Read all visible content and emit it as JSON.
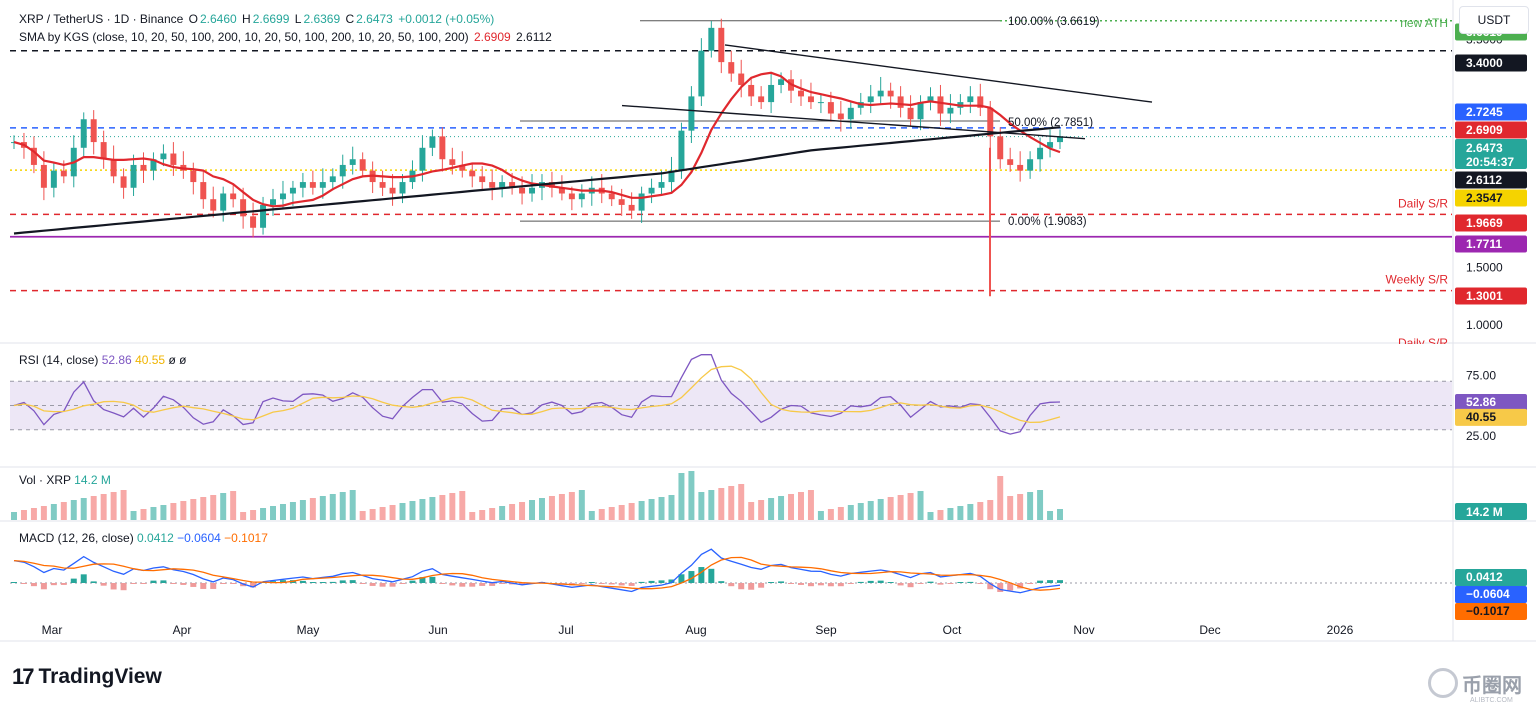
{
  "header": {
    "symbol": "XRP / TetherUS · 1D · Binance",
    "open_label": "O",
    "open": "2.6460",
    "high_label": "H",
    "high": "2.6699",
    "low_label": "L",
    "low": "2.6369",
    "close_label": "C",
    "close": "2.6473",
    "change": "+0.0012 (+0.05%)",
    "sma_label": "SMA by KGS (close, 10, 20, 50, 100, 200, 10, 20, 50, 100, 200, 10, 20, 50, 100, 200)",
    "sma_val1": "2.6909",
    "sma_val2": "2.6112"
  },
  "currency_button": "USDT",
  "colors": {
    "up": "#26a69a",
    "down": "#ef5350",
    "sma50": "#e0282e",
    "sma200": "#131722",
    "rsi": "#7e57c2",
    "rsi_ma": "#f7c948",
    "macd": "#2962ff",
    "signal": "#ff6d00",
    "purple_line": "#9c27b0",
    "blue_dash": "#2962ff",
    "yellow_dot": "#f5d300",
    "ath_green": "#4caf50"
  },
  "price_axis": {
    "ticks": [
      "3.5000",
      "1.5000",
      "1.0000"
    ],
    "labels": [
      {
        "text": "3.6619",
        "bg": "#4caf50",
        "color": "#ffffff"
      },
      {
        "text": "3.4000",
        "bg": "#131722",
        "color": "#ffffff"
      },
      {
        "text": "2.7245",
        "bg": "#2962ff",
        "color": "#ffffff"
      },
      {
        "text": "2.6909",
        "bg": "#e0282e",
        "color": "#ffffff"
      },
      {
        "text": "2.6473",
        "bg": "#26a69a",
        "color": "#ffffff",
        "sub": "20:54:37"
      },
      {
        "text": "2.6112",
        "bg": "#131722",
        "color": "#ffffff"
      },
      {
        "text": "2.3547",
        "bg": "#f5d300",
        "color": "#131722"
      },
      {
        "text": "1.9669",
        "bg": "#e0282e",
        "color": "#ffffff"
      },
      {
        "text": "1.7711",
        "bg": "#9c27b0",
        "color": "#ffffff"
      },
      {
        "text": "1.3001",
        "bg": "#e0282e",
        "color": "#ffffff"
      }
    ]
  },
  "annotations": {
    "new_ath": "new ATH",
    "fib_100": "100.00% (3.6619)",
    "fib_50": "50.00% (2.7851)",
    "fib_0": "0.00% (1.9083)",
    "daily_sr": "Daily S/R",
    "weekly_sr": "Weekly S/R",
    "daily_sr_cut": "Daily S/R"
  },
  "rsi": {
    "label": "RSI (14, close)",
    "value": "52.86",
    "ma_value": "40.55",
    "extra": "ø ø",
    "axis_upper": "75.00",
    "axis_lower": "25.00"
  },
  "volume": {
    "label": "Vol · XRP",
    "value": "14.2 M",
    "axis_value": "14.2 M"
  },
  "macd": {
    "label": "MACD (12, 26, close)",
    "hist": "0.0412",
    "macd": "−0.0604",
    "signal": "−0.1017",
    "axis_hist": "0.0412",
    "axis_macd": "−0.0604",
    "axis_signal": "−0.1017"
  },
  "time_axis": [
    "Mar",
    "Apr",
    "May",
    "Jun",
    "Jul",
    "Aug",
    "Sep",
    "Oct",
    "Nov",
    "Dec",
    "2026"
  ],
  "chart_data": {
    "type": "candlestick",
    "symbol": "XRP / TetherUS",
    "interval": "1D",
    "exchange": "Binance",
    "last": {
      "open": 2.646,
      "high": 2.6699,
      "low": 2.6369,
      "close": 2.6473
    },
    "close_series_approx": [
      2.6,
      2.55,
      2.4,
      2.2,
      2.35,
      2.3,
      2.55,
      2.8,
      2.6,
      2.45,
      2.3,
      2.2,
      2.4,
      2.35,
      2.45,
      2.5,
      2.4,
      2.35,
      2.25,
      2.1,
      2.0,
      2.15,
      2.1,
      1.95,
      1.85,
      2.05,
      2.1,
      2.15,
      2.2,
      2.25,
      2.2,
      2.25,
      2.3,
      2.4,
      2.45,
      2.35,
      2.25,
      2.2,
      2.15,
      2.25,
      2.35,
      2.55,
      2.65,
      2.45,
      2.4,
      2.35,
      2.3,
      2.25,
      2.2,
      2.25,
      2.2,
      2.15,
      2.2,
      2.25,
      2.2,
      2.15,
      2.1,
      2.15,
      2.2,
      2.15,
      2.1,
      2.05,
      2.0,
      2.15,
      2.2,
      2.25,
      2.35,
      2.7,
      3.0,
      3.4,
      3.6,
      3.3,
      3.2,
      3.1,
      3.0,
      2.95,
      3.1,
      3.15,
      3.05,
      3.0,
      2.95,
      2.95,
      2.85,
      2.8,
      2.9,
      2.95,
      3.0,
      3.05,
      3.0,
      2.9,
      2.8,
      2.95,
      3.0,
      2.85,
      2.9,
      2.95,
      3.0,
      2.9,
      2.65,
      2.45,
      2.4,
      2.35,
      2.45,
      2.55,
      2.6,
      2.65
    ],
    "moving_averages": [
      {
        "name": "SMA 50",
        "last": 2.6909
      },
      {
        "name": "SMA 200",
        "last": 2.6112
      }
    ],
    "horizontal_levels": [
      {
        "label": "new ATH",
        "value": 3.6619
      },
      {
        "value": 3.4
      },
      {
        "value": 2.7245
      },
      {
        "value": 2.3547
      },
      {
        "label": "Daily S/R",
        "value": 1.9669
      },
      {
        "value": 1.7711
      },
      {
        "label": "Weekly S/R",
        "value": 1.3001
      }
    ],
    "fibonacci": [
      {
        "level": "100.00%",
        "value": 3.6619
      },
      {
        "level": "50.00%",
        "value": 2.7851
      },
      {
        "level": "0.00%",
        "value": 1.9083
      }
    ],
    "rsi": {
      "value": 52.86,
      "ma": 40.55,
      "upper": 75,
      "lower": 25
    },
    "volume_last": "14.2 M",
    "macd": {
      "hist": 0.0412,
      "macd": -0.0604,
      "signal": -0.1017
    }
  }
}
